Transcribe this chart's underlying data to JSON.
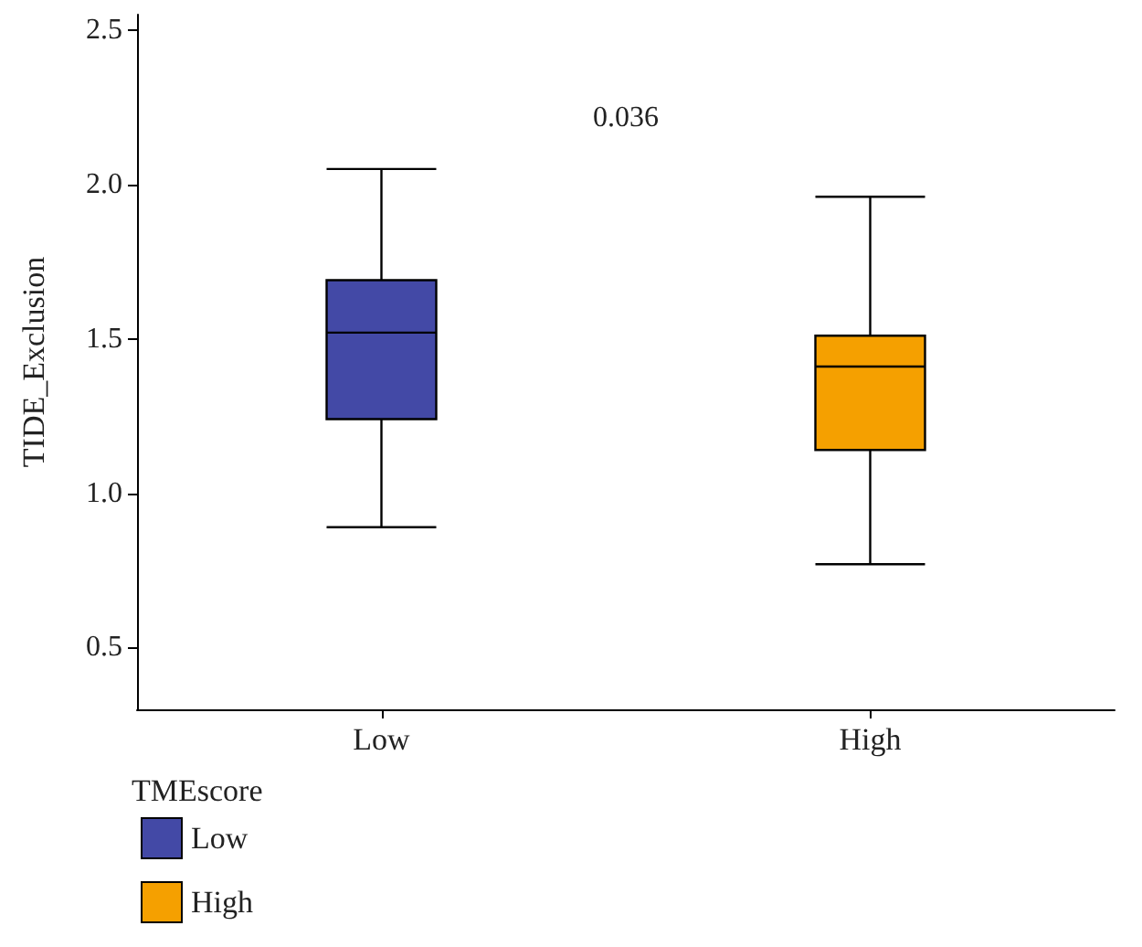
{
  "chart_data": {
    "type": "box",
    "categories": [
      "Low",
      "High"
    ],
    "ylabel": "TIDE_Exclusion",
    "legend_title": "TMEscore",
    "legend": "bottom left",
    "grid": false,
    "ylim": [
      0.3,
      2.55
    ],
    "yticks": [
      0.5,
      {
        "value": 1,
        "label": "1.0"
      },
      1.5,
      {
        "value": 2,
        "label": "2.0"
      },
      2.5
    ],
    "annotations": [
      "0.036"
    ],
    "series": [
      {
        "name": "Low",
        "color": "#4349a6",
        "boxes": [
          {
            "low": 0.89,
            "q1": 1.24,
            "median": 1.52,
            "q3": 1.69,
            "high": 2.05
          },
          null
        ]
      },
      {
        "name": "High",
        "color": "#f5a000",
        "boxes": [
          null,
          {
            "low": 0.77,
            "q1": 1.14,
            "median": 1.41,
            "q3": 1.51,
            "high": 1.96
          }
        ]
      }
    ]
  }
}
